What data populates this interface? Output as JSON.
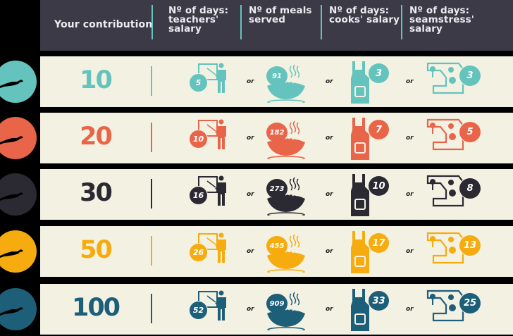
{
  "header": {
    "col_contribution": "Your contribution",
    "col_teachers": [
      "Nº of days:",
      "teachers'",
      "salary"
    ],
    "col_meals": [
      "Nº of meals",
      "served"
    ],
    "col_cooks": [
      "Nº of days:",
      "cooks' salary"
    ],
    "col_seamstress": [
      "Nº of days:",
      "seamstress'",
      "salary"
    ]
  },
  "separator_word": "or",
  "rows": [
    {
      "amount": "10",
      "teachers_days": "5",
      "meals": "91",
      "cooks_days": "3",
      "seamstress_days": "3",
      "color": "#65c3bd"
    },
    {
      "amount": "20",
      "teachers_days": "10",
      "meals": "182",
      "cooks_days": "7",
      "seamstress_days": "5",
      "color": "#e9654a"
    },
    {
      "amount": "30",
      "teachers_days": "16",
      "meals": "273",
      "cooks_days": "10",
      "seamstress_days": "8",
      "color": "#2b2a33"
    },
    {
      "amount": "50",
      "teachers_days": "26",
      "meals": "455",
      "cooks_days": "17",
      "seamstress_days": "13",
      "color": "#f6ab0f"
    },
    {
      "amount": "100",
      "teachers_days": "52",
      "meals": "909",
      "cooks_days": "33",
      "seamstress_days": "25",
      "color": "#1d5e79"
    }
  ],
  "chart_data": {
    "type": "table",
    "title": "",
    "columns": [
      "Your contribution",
      "Nº of days: teachers' salary",
      "Nº of meals served",
      "Nº of days: cooks' salary",
      "Nº of days: seamstress' salary"
    ],
    "rows": [
      [
        10,
        5,
        91,
        3,
        3
      ],
      [
        20,
        10,
        182,
        7,
        5
      ],
      [
        30,
        16,
        273,
        10,
        8
      ],
      [
        50,
        26,
        455,
        17,
        13
      ],
      [
        100,
        52,
        909,
        33,
        25
      ]
    ]
  }
}
